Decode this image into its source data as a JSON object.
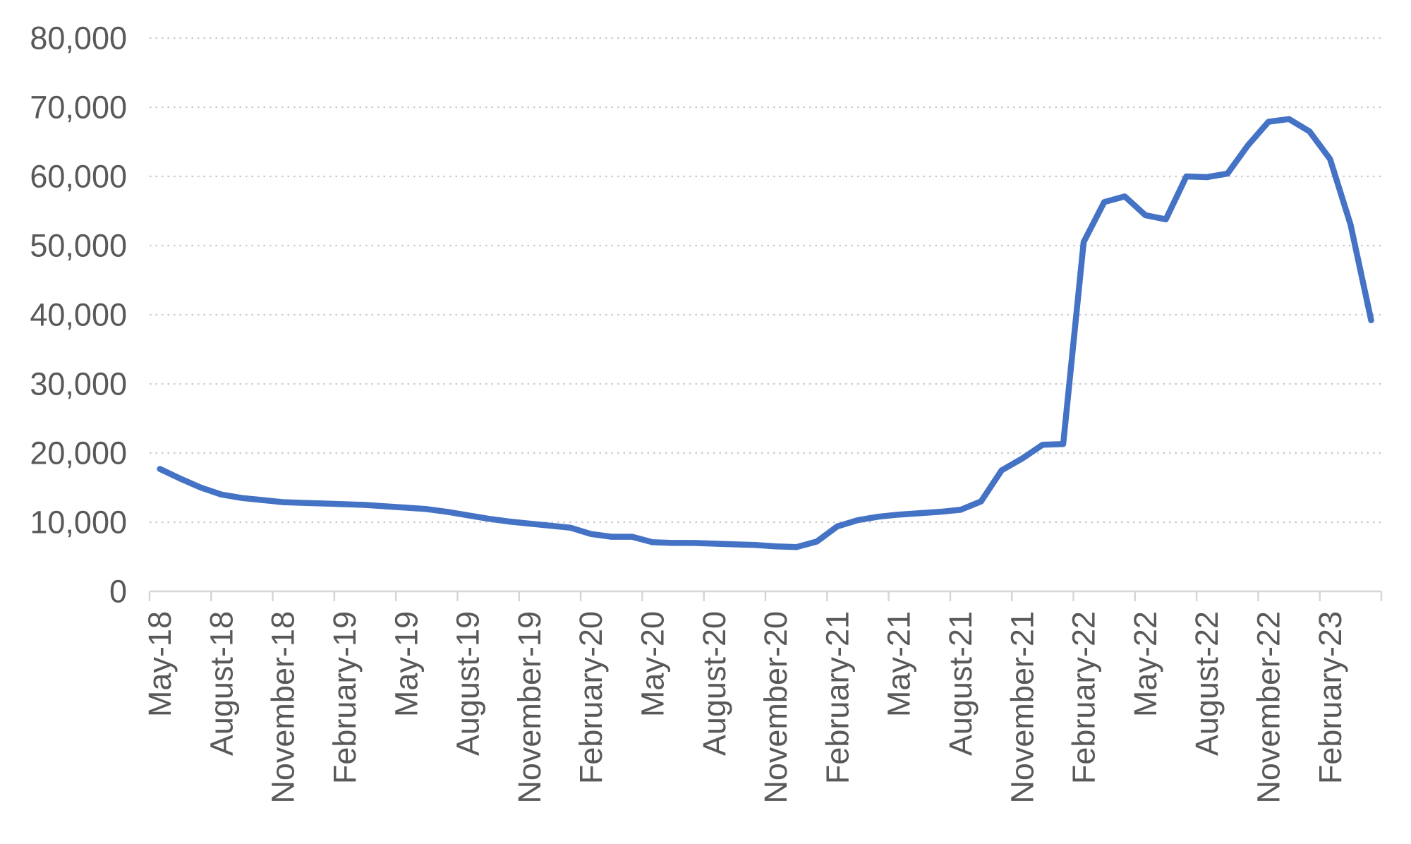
{
  "chart_data": {
    "type": "line",
    "title": "",
    "legend": "none",
    "grid": "horizontal-dotted",
    "series_name": "monthly-value",
    "series_color": "#4472C4",
    "ylim": [
      0,
      80000
    ],
    "ytick_step": 10000,
    "y_tick_labels": [
      "0",
      "10,000",
      "20,000",
      "30,000",
      "40,000",
      "50,000",
      "60,000",
      "70,000",
      "80,000"
    ],
    "x_tick_interval": 3,
    "visible_x_tick_labels": [
      "May-18",
      "August-18",
      "November-18",
      "February-19",
      "May-19",
      "August-19",
      "November-19",
      "February-20",
      "May-20",
      "August-20",
      "November-20",
      "February-21",
      "May-21",
      "August-21",
      "November-21",
      "February-22",
      "May-22",
      "August-22",
      "November-22",
      "February-23"
    ],
    "x": [
      "May-18",
      "June-18",
      "July-18",
      "August-18",
      "September-18",
      "October-18",
      "November-18",
      "December-18",
      "January-19",
      "February-19",
      "March-19",
      "April-19",
      "May-19",
      "June-19",
      "July-19",
      "August-19",
      "September-19",
      "October-19",
      "November-19",
      "December-19",
      "January-20",
      "February-20",
      "March-20",
      "April-20",
      "May-20",
      "June-20",
      "July-20",
      "August-20",
      "September-20",
      "October-20",
      "November-20",
      "December-20",
      "January-21",
      "February-21",
      "March-21",
      "April-21",
      "May-21",
      "June-21",
      "July-21",
      "August-21",
      "September-21",
      "October-21",
      "November-21",
      "December-21",
      "January-22",
      "February-22",
      "March-22",
      "April-22",
      "May-22",
      "June-22",
      "July-22",
      "August-22",
      "September-22",
      "October-22",
      "November-22",
      "December-22",
      "January-23",
      "February-23",
      "March-23",
      "April-23"
    ],
    "values": [
      17700,
      16300,
      15000,
      14000,
      13500,
      13200,
      12900,
      12800,
      12700,
      12600,
      12500,
      12300,
      12100,
      11900,
      11500,
      11000,
      10500,
      10100,
      9800,
      9500,
      9200,
      8300,
      7900,
      7900,
      7100,
      7000,
      7000,
      6900,
      6800,
      6700,
      6500,
      6400,
      7200,
      9400,
      10300,
      10800,
      11100,
      11300,
      11500,
      11800,
      13000,
      17500,
      19200,
      21200,
      21300,
      50500,
      56300,
      57100,
      54400,
      53800,
      60000,
      59900,
      60400,
      64500,
      67900,
      68300,
      66500,
      62500,
      53000,
      39200
    ]
  }
}
